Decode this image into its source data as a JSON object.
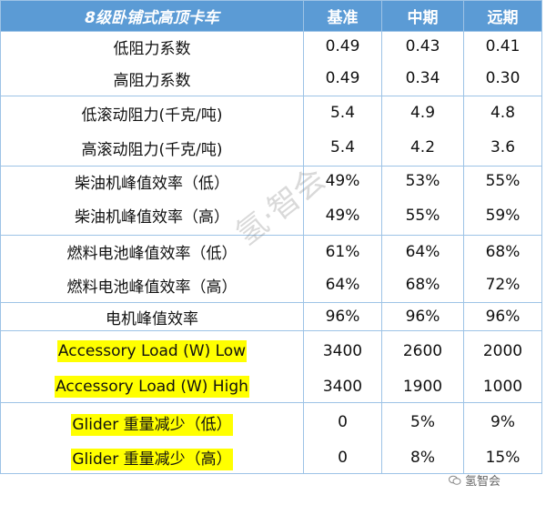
{
  "header": {
    "title": "8级卧铺式高顶卡车",
    "col1": "基准",
    "col2": "中期",
    "col3": "远期"
  },
  "rows": [
    {
      "label": "低阻力系数",
      "v1": "0.49",
      "v2": "0.43",
      "v3": "0.41",
      "highlight": false
    },
    {
      "label": "高阻力系数",
      "v1": "0.49",
      "v2": "0.34",
      "v3": "0.30",
      "highlight": false
    },
    {
      "label": "低滚动阻力(千克/吨)",
      "v1": "5.4",
      "v2": "4.9",
      "v3": "4.8",
      "highlight": false
    },
    {
      "label": "高滚动阻力(千克/吨)",
      "v1": "5.4",
      "v2": "4.2",
      "v3": "3.6",
      "highlight": false
    },
    {
      "label": "柴油机峰值效率（低）",
      "v1": "49%",
      "v2": "53%",
      "v3": "55%",
      "highlight": false
    },
    {
      "label": "柴油机峰值效率（高）",
      "v1": "49%",
      "v2": "55%",
      "v3": "59%",
      "highlight": false
    },
    {
      "label": "燃料电池峰值效率（低）",
      "v1": "61%",
      "v2": "64%",
      "v3": "68%",
      "highlight": false
    },
    {
      "label": "燃料电池峰值效率（高）",
      "v1": "64%",
      "v2": "68%",
      "v3": "72%",
      "highlight": false
    },
    {
      "label": "电机峰值效率",
      "v1": "96%",
      "v2": "96%",
      "v3": "96%",
      "highlight": false
    },
    {
      "label": "Accessory Load (W) Low",
      "v1": "3400",
      "v2": "2600",
      "v3": "2000",
      "highlight": true
    },
    {
      "label": "Accessory Load (W) High",
      "v1": "3400",
      "v2": "1900",
      "v3": "1000",
      "highlight": true
    },
    {
      "label": "Glider  重量减少（低）",
      "v1": "0",
      "v2": "5%",
      "v3": "9%",
      "highlight": true
    },
    {
      "label": "Glider  重量减少（高）",
      "v1": "0",
      "v2": "8%",
      "v3": "15%",
      "highlight": true
    }
  ],
  "watermark": "氢·智会",
  "brand": "氢智会",
  "colors": {
    "header_bg": "#5b9bd5",
    "border": "#9dc3e6",
    "highlight": "#ffff00"
  }
}
